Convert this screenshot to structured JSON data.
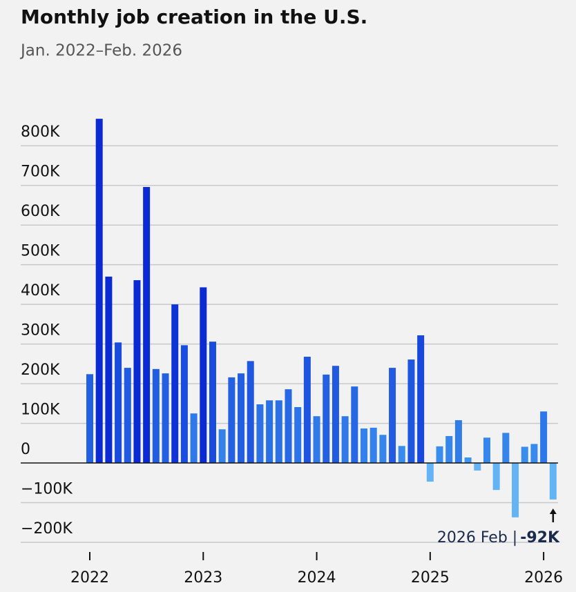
{
  "chart_data": {
    "type": "bar",
    "title": "Monthly job creation in the U.S.",
    "subtitle": "Jan. 2022–Feb. 2026",
    "categories": [
      "2022",
      null,
      null,
      null,
      null,
      null,
      null,
      null,
      null,
      null,
      null,
      null,
      "2023",
      null,
      null,
      null,
      null,
      null,
      null,
      null,
      null,
      null,
      null,
      null,
      "2024",
      null,
      null,
      null,
      null,
      null,
      null,
      null,
      null,
      null,
      null,
      null,
      "2025",
      null,
      null,
      null,
      null,
      null,
      null,
      null,
      null,
      null,
      null,
      null,
      "2026",
      null
    ],
    "values": [
      224,
      868,
      470,
      304,
      240,
      461,
      696,
      237,
      226,
      400,
      297,
      125,
      443,
      306,
      85,
      216,
      226,
      257,
      148,
      158,
      158,
      186,
      141,
      268,
      118,
      223,
      245,
      118,
      193,
      87,
      89,
      71,
      240,
      43,
      261,
      322,
      -47,
      42,
      68,
      108,
      14,
      -19,
      64,
      -68,
      76,
      -137,
      41,
      48,
      130,
      -92
    ],
    "colors": {
      "low": "#3d97f0",
      "high": "#0a2bd4",
      "negative": "#63b3f5"
    },
    "ylim": [
      -220,
      870
    ],
    "yticks": [
      {
        "value": -200,
        "label": "−200K"
      },
      {
        "value": -100,
        "label": "−100K"
      },
      0,
      {
        "value": 100,
        "label": "100K"
      },
      {
        "value": 200,
        "label": "200K"
      },
      {
        "value": 300,
        "label": "300K"
      },
      {
        "value": 400,
        "label": "400K"
      },
      {
        "value": 500,
        "label": "500K"
      },
      {
        "value": 600,
        "label": "600K"
      },
      {
        "value": 700,
        "label": "700K"
      },
      {
        "value": 800,
        "label": "800K"
      }
    ],
    "grid": true,
    "annotation": {
      "text": "2026 Feb |",
      "value_label": "-92K"
    }
  }
}
